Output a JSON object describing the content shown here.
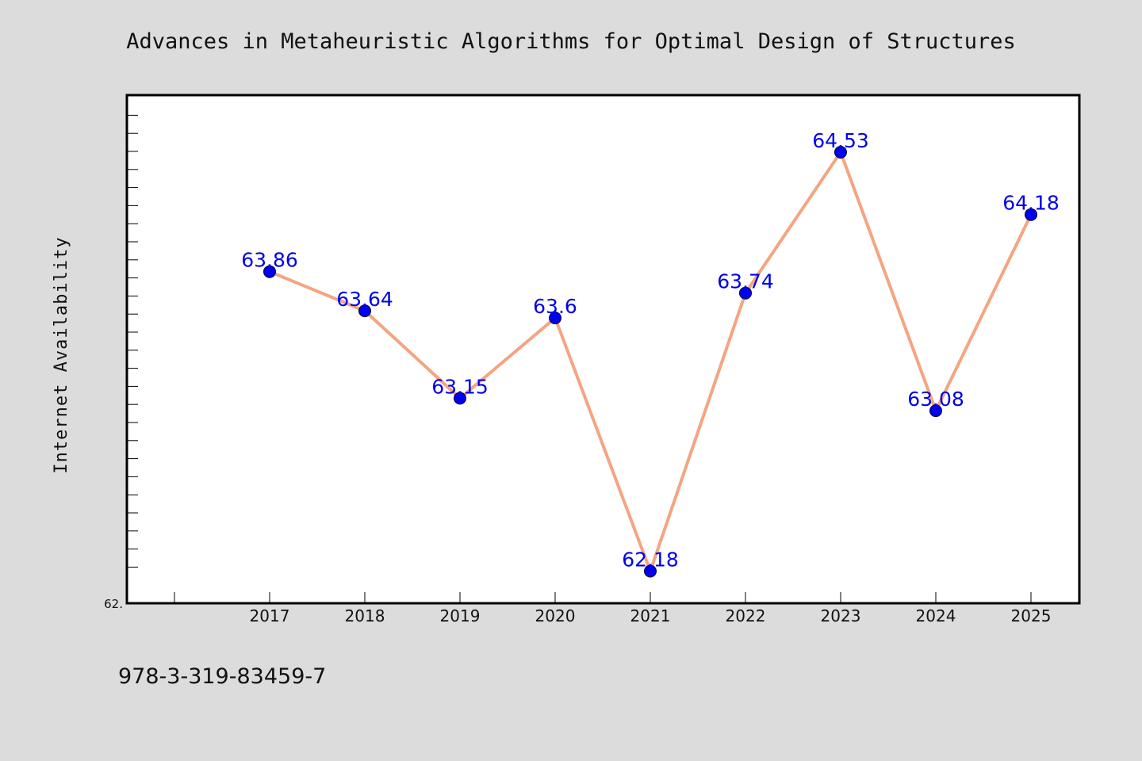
{
  "chart_data": {
    "type": "line",
    "title": "Advances in Metaheuristic Algorithms for Optimal Design of Structures",
    "xlabel": "",
    "ylabel": "Internet Availability",
    "categories": [
      "2017",
      "2018",
      "2019",
      "2020",
      "2021",
      "2022",
      "2023",
      "2024",
      "2025"
    ],
    "series": [
      {
        "values": [
          63.86,
          63.64,
          63.15,
          63.6,
          62.18,
          63.74,
          64.53,
          63.08,
          64.18
        ],
        "labels": [
          "63.86",
          "63.64",
          "63.15",
          "63.6",
          "62.18",
          "63.74",
          "64.53",
          "63.08",
          "64.18"
        ]
      }
    ],
    "y_tick_labels": [
      "62."
    ],
    "grid": false,
    "line_color": "#f4a582",
    "marker_color": "#0000ee",
    "label_color": "#0000ee"
  },
  "footer": {
    "text": "978-3-319-83459-7"
  }
}
